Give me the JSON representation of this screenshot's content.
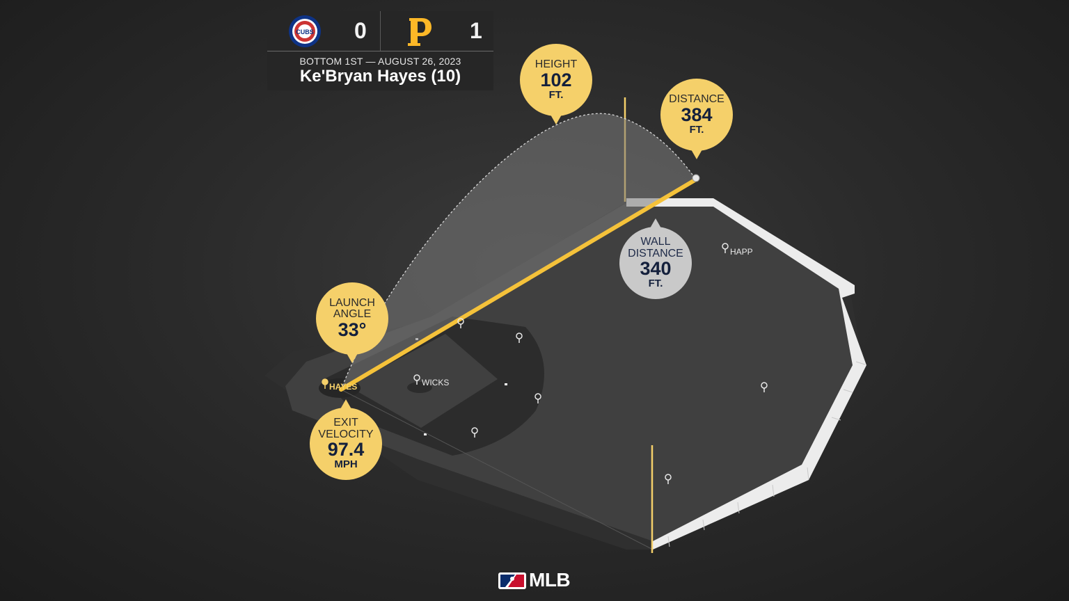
{
  "scoreboard": {
    "away_team": {
      "logo": "cubs-logo",
      "logo_text": "CUBS",
      "score": "0",
      "color": "#0e3386",
      "accent": "#cc3433"
    },
    "home_team": {
      "logo": "pirates-logo",
      "score": "1",
      "color": "#fdb827"
    },
    "game_info": "BOTTOM 1ST — AUGUST 26, 2023",
    "batter": "Ke'Bryan Hayes (10)"
  },
  "stats": {
    "height": {
      "label": "HEIGHT",
      "value": "102",
      "unit": "FT."
    },
    "distance": {
      "label": "DISTANCE",
      "value": "384",
      "unit": "FT."
    },
    "wall_distance": {
      "label_1": "WALL",
      "label_2": "DISTANCE",
      "value": "340",
      "unit": "FT."
    },
    "launch_angle": {
      "label_1": "LAUNCH",
      "label_2": "ANGLE",
      "value": "33°"
    },
    "exit_velocity": {
      "label_1": "EXIT",
      "label_2": "VELOCITY",
      "value": "97.4",
      "unit": "MPH"
    }
  },
  "players": {
    "batter": "HAYES",
    "pitcher": "WICKS",
    "fielder": "HAPP"
  },
  "branding": {
    "league": "MLB"
  },
  "colors": {
    "accent_yellow": "#f5d06a",
    "field": "#3c3c3c",
    "wall": "#f2f2f2"
  }
}
